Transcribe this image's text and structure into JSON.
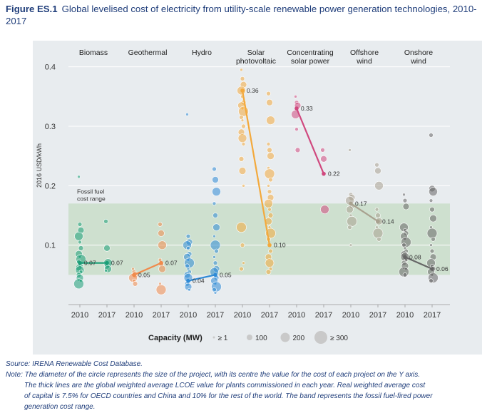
{
  "title": {
    "label": "Figure ES.1",
    "text": "Global levelised cost of electricity from utility-scale renewable power generation technologies, 2010-2017"
  },
  "chart_data": {
    "type": "scatter",
    "ylabel": "2016 USD/kWh",
    "ylim": [
      0,
      0.42
    ],
    "yticks": [
      0.1,
      0.2,
      0.3,
      0.4
    ],
    "ytick_labels": [
      "0.1",
      "0.2",
      "0.3",
      "0.4"
    ],
    "band": {
      "label": [
        "Fossil fuel",
        "cost range"
      ],
      "low": 0.05,
      "high": 0.17,
      "color": "#c5dcc4"
    },
    "categories": [
      "Biomass",
      "Geothermal",
      "Hydro",
      "Solar photovoltaic",
      "Concentrating solar power",
      "Offshore wind",
      "Onshore wind"
    ],
    "category_labels": [
      [
        "Biomass"
      ],
      [
        "Geothermal"
      ],
      [
        "Hydro"
      ],
      [
        "Solar",
        "photovoltaic"
      ],
      [
        "Concentrating",
        "solar power"
      ],
      [
        "Offshore",
        "wind"
      ],
      [
        "Onshore",
        "wind"
      ]
    ],
    "years": [
      "2010",
      "2017"
    ],
    "series": [
      {
        "name": "Biomass",
        "color": "#1a9e77",
        "avg2010": 0.07,
        "avg2017": 0.07,
        "label2010": "0.07",
        "label2017": "0.07",
        "points2010": [
          0.215,
          0.135,
          0.125,
          0.115,
          0.105,
          0.095,
          0.085,
          0.08,
          0.076,
          0.072,
          0.068,
          0.065,
          0.062,
          0.058,
          0.055,
          0.05,
          0.045,
          0.04,
          0.035
        ],
        "points2017": [
          0.14,
          0.095,
          0.07,
          0.067,
          0.064,
          0.06,
          0.057
        ]
      },
      {
        "name": "Geothermal",
        "color": "#f08a4b",
        "avg2010": 0.05,
        "avg2017": 0.07,
        "label2010": "0.05",
        "label2017": "0.07",
        "points2010": [
          0.06,
          0.055,
          0.05,
          0.045,
          0.04,
          0.035
        ],
        "points2017": [
          0.135,
          0.12,
          0.1,
          0.075,
          0.068,
          0.06,
          0.035,
          0.025
        ]
      },
      {
        "name": "Hydro",
        "color": "#2e8ad6",
        "avg2010": 0.04,
        "avg2017": 0.05,
        "label2010": "0.04",
        "label2017": "0.05",
        "points2010": [
          0.32,
          0.115,
          0.105,
          0.1,
          0.095,
          0.085,
          0.08,
          0.075,
          0.07,
          0.065,
          0.06,
          0.055,
          0.05,
          0.045,
          0.04,
          0.035,
          0.03,
          0.025
        ],
        "points2017": [
          0.228,
          0.21,
          0.19,
          0.17,
          0.15,
          0.13,
          0.115,
          0.1,
          0.09,
          0.08,
          0.07,
          0.06,
          0.055,
          0.05,
          0.045,
          0.04,
          0.035,
          0.03,
          0.025,
          0.02
        ]
      },
      {
        "name": "Solar photovoltaic",
        "color": "#f3a93c",
        "avg2010": 0.36,
        "avg2017": 0.1,
        "label2010": "0.36",
        "label2017": "0.10",
        "points2010": [
          0.395,
          0.38,
          0.37,
          0.36,
          0.35,
          0.34,
          0.335,
          0.33,
          0.325,
          0.315,
          0.31,
          0.3,
          0.29,
          0.28,
          0.27,
          0.245,
          0.225,
          0.2,
          0.13,
          0.1,
          0.07,
          0.06
        ],
        "points2017": [
          0.355,
          0.34,
          0.31,
          0.27,
          0.26,
          0.25,
          0.23,
          0.22,
          0.21,
          0.2,
          0.19,
          0.18,
          0.17,
          0.16,
          0.15,
          0.14,
          0.13,
          0.12,
          0.11,
          0.1,
          0.09,
          0.08,
          0.07,
          0.06,
          0.055
        ]
      },
      {
        "name": "Concentrating solar power",
        "color": "#d0487e",
        "avg2010": 0.33,
        "avg2017": 0.22,
        "label2010": "0.33",
        "label2017": "0.22",
        "points2010": [
          0.35,
          0.34,
          0.335,
          0.32,
          0.295,
          0.26
        ],
        "points2017": [
          0.26,
          0.245,
          0.16
        ]
      },
      {
        "name": "Offshore wind",
        "color": "#a8a18f",
        "avg2010": 0.17,
        "avg2017": 0.14,
        "label2010": "0.17",
        "label2017": "0.14",
        "points2010": [
          0.26,
          0.185,
          0.18,
          0.175,
          0.17,
          0.165,
          0.16,
          0.15,
          0.14,
          0.13,
          0.1
        ],
        "points2017": [
          0.235,
          0.225,
          0.2,
          0.16,
          0.15,
          0.14,
          0.13,
          0.12,
          0.11
        ]
      },
      {
        "name": "Onshore wind",
        "color": "#666666",
        "avg2010": 0.08,
        "avg2017": 0.06,
        "label2010": "0.08",
        "label2017": "0.06",
        "points2010": [
          0.185,
          0.175,
          0.165,
          0.13,
          0.125,
          0.12,
          0.115,
          0.11,
          0.105,
          0.1,
          0.095,
          0.09,
          0.085,
          0.08,
          0.075,
          0.07,
          0.065,
          0.06,
          0.055,
          0.05
        ],
        "points2017": [
          0.285,
          0.195,
          0.19,
          0.175,
          0.16,
          0.145,
          0.13,
          0.12,
          0.11,
          0.1,
          0.09,
          0.08,
          0.07,
          0.065,
          0.06,
          0.055,
          0.05,
          0.045,
          0.04
        ]
      }
    ],
    "legend": {
      "title": "Capacity (MW)",
      "entries": [
        "≥ 1",
        "100",
        "200",
        "≥ 300"
      ],
      "sizes": [
        1,
        100,
        200,
        300
      ]
    }
  },
  "notes": {
    "source": "Source: IRENA Renewable Cost Database.",
    "note_lines": [
      "Note: The diameter of the circle represents the size of the project, with its centre the value for the cost of each project on the Y axis.",
      "The thick lines are the global weighted average LCOE value for plants commissioned in each year. Real weighted average cost",
      "of capital is 7.5% for OECD countries and China and 10% for the rest of the world. The band represents the fossil fuel-fired power",
      "generation cost range."
    ]
  }
}
